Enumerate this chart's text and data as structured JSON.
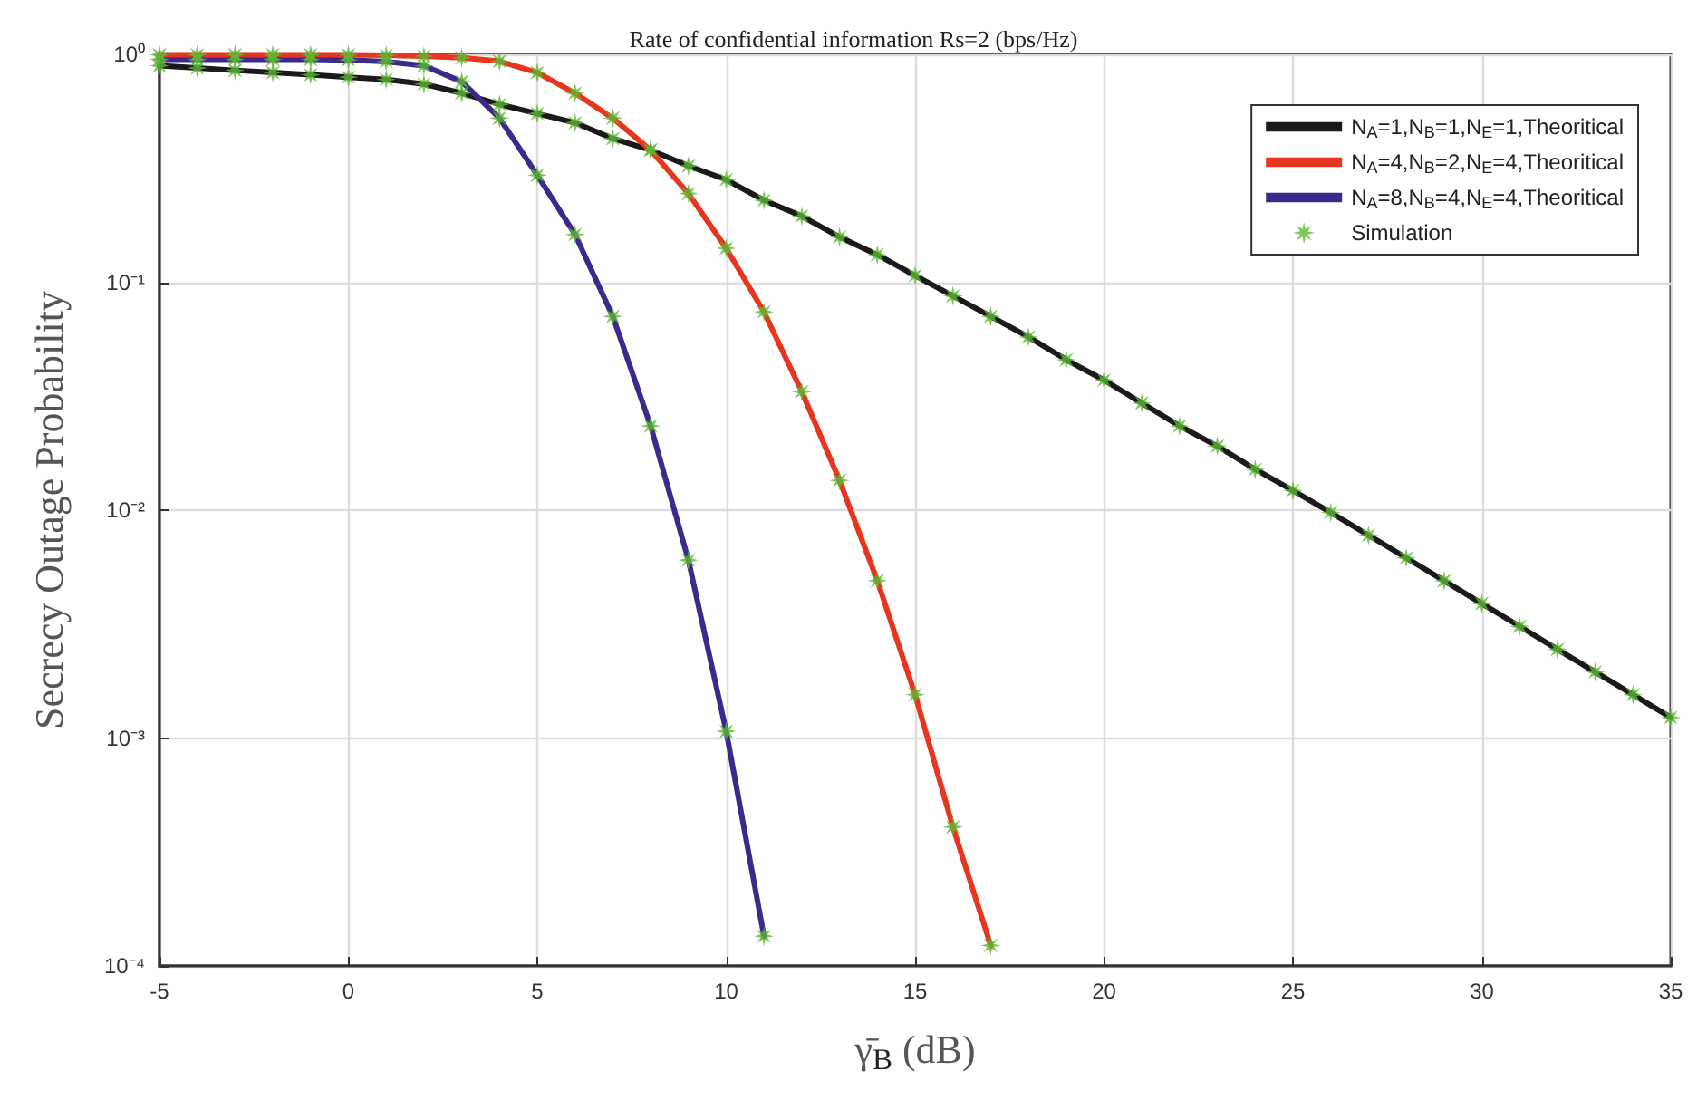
{
  "chart_data": {
    "type": "line",
    "title": "Rate of confidential information Rs=2 (bps/Hz)",
    "xlabel": "γ̄$_{B}$ (dB)",
    "ylabel": "Secrecy Outage Probability",
    "log": "y",
    "grid": true,
    "legend": "top right",
    "line_style": "solid",
    "marker": "none",
    "xlim": [
      -5,
      35
    ],
    "xticks": [
      -5,
      0,
      5,
      10,
      15,
      20,
      25,
      30,
      35
    ],
    "ylim": [
      0.0001,
      1
    ],
    "yticks": [
      {
        "value": 1,
        "label": "10⁰"
      },
      {
        "value": 0.1,
        "label": "10⁻¹"
      },
      {
        "value": 0.01,
        "label": "10⁻²"
      },
      {
        "value": 0.001,
        "label": "10⁻³"
      },
      {
        "value": 0.0001,
        "label": "10⁻⁴"
      }
    ],
    "series": [
      {
        "name": "N$_{A}$=1,N$_{B}$=1,N$_{E}$=1,Theoritical",
        "color": "#1a1a1a",
        "x": [
          -5,
          -4,
          -3,
          -2,
          -1,
          0,
          1,
          2,
          3,
          4,
          5,
          6,
          7,
          8,
          9,
          10,
          11,
          12,
          13,
          14,
          15,
          16,
          17,
          18,
          19,
          20,
          21,
          22,
          23,
          24,
          25,
          26,
          27,
          28,
          29,
          30,
          31,
          32,
          33,
          34,
          35
        ],
        "values": [
          0.891,
          0.871,
          0.851,
          0.832,
          0.813,
          0.794,
          0.776,
          0.741,
          0.676,
          0.603,
          0.55,
          0.501,
          0.427,
          0.38,
          0.324,
          0.282,
          0.229,
          0.195,
          0.158,
          0.132,
          0.107,
          0.0871,
          0.0708,
          0.0575,
          0.0457,
          0.0372,
          0.0295,
          0.0234,
          0.0191,
          0.0151,
          0.0122,
          0.00977,
          0.00776,
          0.00617,
          0.0049,
          0.00389,
          0.00309,
          0.00245,
          0.00195,
          0.00155,
          0.00123
        ]
      },
      {
        "name": "N$_{A}$=4,N$_{B}$=2,N$_{E}$=4,Theoritical",
        "color": "#e8351f",
        "x": [
          -5,
          -4,
          -3,
          -2,
          -1,
          0,
          1,
          2,
          3,
          4,
          5,
          6,
          7,
          8,
          9,
          10,
          11,
          12,
          13,
          14,
          15,
          16,
          17
        ],
        "values": [
          0.995,
          0.995,
          0.995,
          0.995,
          0.995,
          0.995,
          0.991,
          0.982,
          0.966,
          0.933,
          0.832,
          0.676,
          0.525,
          0.38,
          0.245,
          0.141,
          0.0741,
          0.0331,
          0.0135,
          0.0049,
          0.00155,
          0.000407,
          0.000123
        ]
      },
      {
        "name": "N$_{A}$=8,N$_{B}$=4,N$_{E}$=4,Theoritical",
        "color": "#3b2a8c",
        "x": [
          -5,
          -4,
          -3,
          -2,
          -1,
          0,
          1,
          2,
          3,
          4,
          5,
          6,
          7,
          8,
          9,
          10,
          11
        ],
        "values": [
          0.95,
          0.95,
          0.95,
          0.95,
          0.95,
          0.945,
          0.93,
          0.891,
          0.759,
          0.525,
          0.295,
          0.162,
          0.0708,
          0.0234,
          0.00603,
          0.00107,
          0.000135
        ]
      },
      {
        "name": "Simulation",
        "type": "scatter",
        "marker": "star",
        "color": "#5cb833",
        "x": [
          -5,
          -4,
          -3,
          -2,
          -1,
          0,
          1,
          2,
          3,
          4,
          5,
          6,
          7,
          8,
          9,
          10,
          11,
          12,
          13,
          14,
          15,
          16,
          17,
          18,
          19,
          20,
          21,
          22,
          23,
          24,
          25,
          26,
          27,
          28,
          29,
          30,
          31,
          32,
          33,
          34,
          35,
          -5,
          -4,
          -3,
          -2,
          -1,
          0,
          1,
          2,
          3,
          4,
          5,
          6,
          7,
          8,
          9,
          10,
          11,
          12,
          13,
          14,
          15,
          16,
          17,
          -5,
          -4,
          -3,
          -2,
          -1,
          0,
          1,
          2,
          3,
          4,
          5,
          6,
          7,
          8,
          9,
          10,
          11
        ],
        "values": [
          0.891,
          0.871,
          0.851,
          0.832,
          0.813,
          0.794,
          0.776,
          0.741,
          0.676,
          0.603,
          0.55,
          0.501,
          0.427,
          0.38,
          0.324,
          0.282,
          0.229,
          0.195,
          0.158,
          0.132,
          0.107,
          0.0871,
          0.0708,
          0.0575,
          0.0457,
          0.0372,
          0.0295,
          0.0234,
          0.0191,
          0.0151,
          0.0122,
          0.00977,
          0.00776,
          0.00617,
          0.0049,
          0.00389,
          0.00309,
          0.00245,
          0.00195,
          0.00155,
          0.00123,
          0.995,
          0.995,
          0.995,
          0.995,
          0.995,
          0.995,
          0.991,
          0.982,
          0.966,
          0.933,
          0.832,
          0.676,
          0.525,
          0.38,
          0.245,
          0.141,
          0.0741,
          0.0331,
          0.0135,
          0.0049,
          0.00155,
          0.000407,
          0.000123,
          0.95,
          0.95,
          0.95,
          0.95,
          0.95,
          0.945,
          0.93,
          0.891,
          0.759,
          0.525,
          0.295,
          0.162,
          0.0708,
          0.0234,
          0.00603,
          0.00107,
          0.000135
        ]
      }
    ]
  }
}
